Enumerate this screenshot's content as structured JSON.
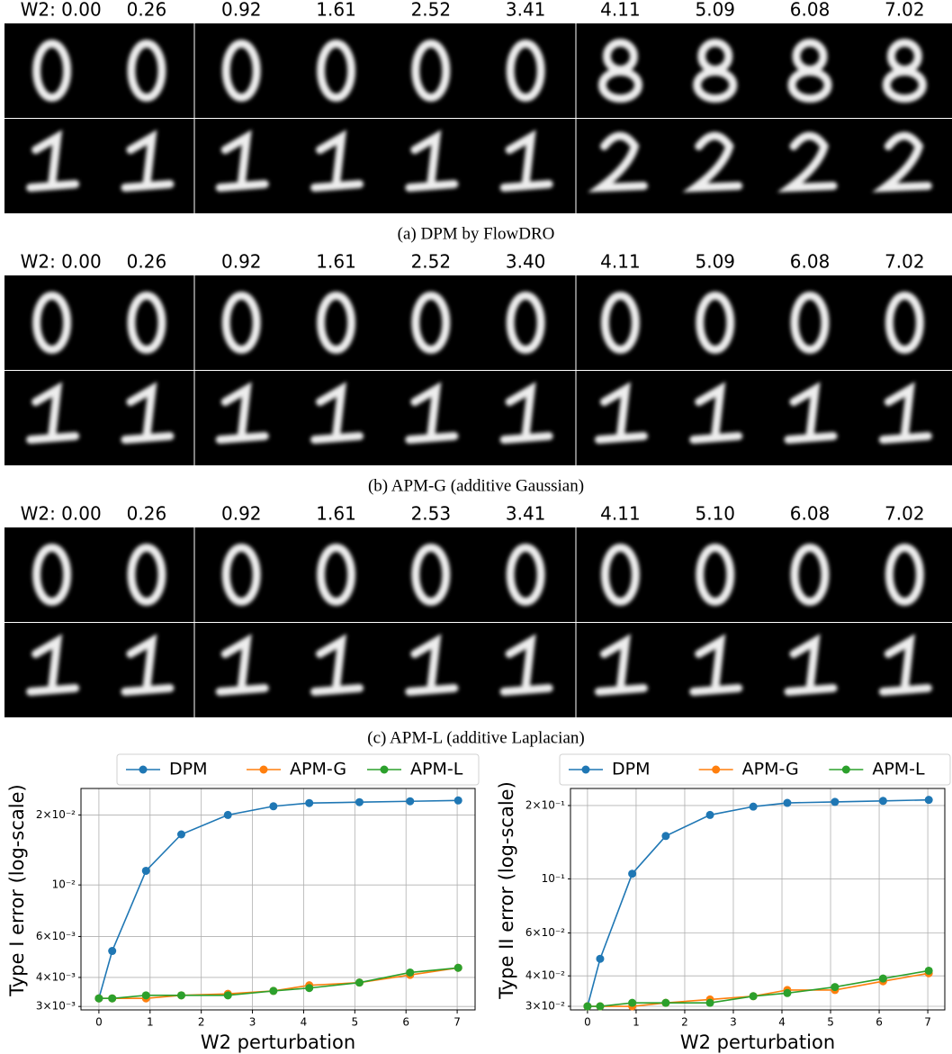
{
  "panels": [
    {
      "labels": [
        "W2: 0.00",
        "0.26",
        "0.92",
        "1.61",
        "2.52",
        "3.41",
        "4.11",
        "5.09",
        "6.08",
        "7.02"
      ],
      "caption": "(a) DPM by FlowDRO"
    },
    {
      "labels": [
        "W2: 0.00",
        "0.26",
        "0.92",
        "1.61",
        "2.52",
        "3.40",
        "4.11",
        "5.09",
        "6.08",
        "7.02"
      ],
      "caption": "(b) APM-G (additive Gaussian)"
    },
    {
      "labels": [
        "W2: 0.00",
        "0.26",
        "0.92",
        "1.61",
        "2.53",
        "3.41",
        "4.11",
        "5.10",
        "6.08",
        "7.02"
      ],
      "caption": "(c) APM-L (additive Laplacian)"
    }
  ],
  "chart_data": [
    {
      "type": "line",
      "x_label": "W2 perturbation",
      "y_label": "Type I error (log-scale)",
      "y_log": true,
      "grid": true,
      "x": [
        0,
        0.26,
        0.92,
        1.61,
        2.52,
        3.41,
        4.11,
        5.09,
        6.08,
        7.02
      ],
      "series": [
        {
          "name": "DPM",
          "color": "#1f77b4",
          "values": [
            0.00325,
            0.0052,
            0.0115,
            0.0165,
            0.02,
            0.0218,
            0.0225,
            0.0227,
            0.0229,
            0.0231
          ]
        },
        {
          "name": "APM-G",
          "color": "#ff7f0e",
          "values": [
            0.00325,
            0.00325,
            0.00325,
            0.00335,
            0.0034,
            0.0035,
            0.0037,
            0.0038,
            0.0041,
            0.0044
          ]
        },
        {
          "name": "APM-L",
          "color": "#2ca02c",
          "values": [
            0.00325,
            0.00325,
            0.00335,
            0.00335,
            0.00335,
            0.0035,
            0.0036,
            0.0038,
            0.0042,
            0.0044
          ]
        }
      ],
      "xlim": [
        -0.35,
        7.35
      ],
      "xticks": [
        0,
        1,
        2,
        3,
        4,
        5,
        6,
        7
      ],
      "ylim": [
        0.0029,
        0.026
      ],
      "yticks": [
        {
          "value": 0.003,
          "label": "3×10⁻³"
        },
        {
          "value": 0.004,
          "label": "4×10⁻³"
        },
        {
          "value": 0.006,
          "label": "6×10⁻³"
        },
        {
          "value": 0.01,
          "label": "10⁻²"
        },
        {
          "value": 0.02,
          "label": "2×10⁻²"
        }
      ]
    },
    {
      "type": "line",
      "x_label": "W2 perturbation",
      "y_label": "Type II error (log-scale)",
      "y_log": true,
      "grid": true,
      "x": [
        0,
        0.26,
        0.92,
        1.61,
        2.52,
        3.41,
        4.11,
        5.09,
        6.08,
        7.02
      ],
      "series": [
        {
          "name": "DPM",
          "color": "#1f77b4",
          "values": [
            0.03,
            0.047,
            0.105,
            0.15,
            0.183,
            0.198,
            0.205,
            0.207,
            0.209,
            0.211
          ]
        },
        {
          "name": "APM-G",
          "color": "#ff7f0e",
          "values": [
            0.03,
            0.03,
            0.03,
            0.031,
            0.032,
            0.033,
            0.035,
            0.035,
            0.038,
            0.041
          ]
        },
        {
          "name": "APM-L",
          "color": "#2ca02c",
          "values": [
            0.03,
            0.03,
            0.031,
            0.031,
            0.031,
            0.033,
            0.034,
            0.036,
            0.039,
            0.042
          ]
        }
      ],
      "xlim": [
        -0.35,
        7.35
      ],
      "xticks": [
        0,
        1,
        2,
        3,
        4,
        5,
        6,
        7
      ],
      "ylim": [
        0.029,
        0.235
      ],
      "yticks": [
        {
          "value": 0.03,
          "label": "3×10⁻²"
        },
        {
          "value": 0.04,
          "label": "4×10⁻²"
        },
        {
          "value": 0.06,
          "label": "6×10⁻²"
        },
        {
          "value": 0.1,
          "label": "10⁻¹"
        },
        {
          "value": 0.2,
          "label": "2×10⁻¹"
        }
      ]
    }
  ]
}
